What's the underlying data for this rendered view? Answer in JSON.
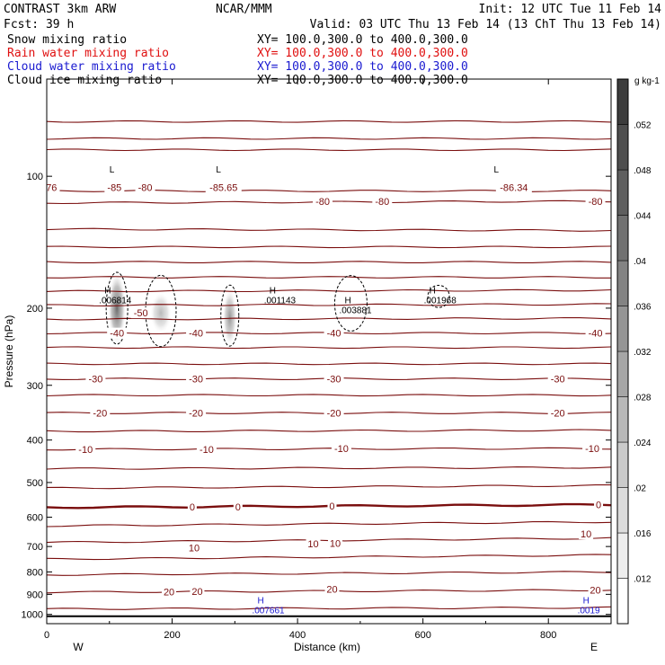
{
  "header": {
    "line1_left": "CONTRAST  3km ARW",
    "line1_center": "NCAR/MMM",
    "line1_right": "Init: 12 UTC Tue 11 Feb 14",
    "line2_left": "Fcst:   39 h",
    "line2_right": "Valid: 03 UTC Thu 13 Feb 14 (13 ChT Thu 13 Feb 14)",
    "fields": [
      {
        "name": "Snow mixing ratio",
        "xy": "XY= 100.0,300.0 to 400.0,300.0",
        "color": "#000000"
      },
      {
        "name": "Rain water mixing ratio",
        "xy": "XY= 100.0,300.0 to 400.0,300.0",
        "color": "#e01010"
      },
      {
        "name": "Cloud water mixing ratio",
        "xy": "XY= 100.0,300.0 to 400.0,300.0",
        "color": "#1a1ad0"
      },
      {
        "name": "Cloud ice mixing ratio",
        "xy": "XY= 100.0,300.0 to 400.0,300.0",
        "color": "#000000"
      }
    ]
  },
  "colors": {
    "contour": "#7a0e0e",
    "contour_zero": "#7a0e0e",
    "cloud_ice": "#000000",
    "cloud_water": "#1a1ad0"
  },
  "chart_data": {
    "type": "cross-section",
    "xlabel": "Distance (km)",
    "ylabel": "Pressure (hPa)",
    "xlim": [
      0,
      900
    ],
    "ylim": [
      1050,
      60
    ],
    "y_scale": "log",
    "x_ticks": [
      0,
      200,
      400,
      600,
      800
    ],
    "x_tick_labels": [
      "0",
      "200",
      "400",
      "600",
      "800"
    ],
    "y_ticks": [
      100,
      200,
      300,
      400,
      500,
      600,
      700,
      800,
      900,
      1000
    ],
    "y_tick_labels": [
      "100",
      "200",
      "300",
      "400",
      "500",
      "600",
      "700",
      "800",
      "900",
      "1000"
    ],
    "x_end_labels": {
      "left": "W",
      "right": "E"
    },
    "ground_pressure": 1010,
    "temperature_contours": [
      {
        "p_left": 75,
        "p_right": 75,
        "label": ""
      },
      {
        "p_left": 82,
        "p_right": 82,
        "label": ""
      },
      {
        "p_left": 87,
        "p_right": 87,
        "label": ""
      },
      {
        "p_left": 108,
        "p_right": 108,
        "label": ""
      },
      {
        "p_left": 115,
        "p_right": 114,
        "label": "-80"
      },
      {
        "p_left": 132,
        "p_right": 133,
        "label": ""
      },
      {
        "p_left": 145,
        "p_right": 145,
        "label": ""
      },
      {
        "p_left": 157,
        "p_right": 157,
        "label": ""
      },
      {
        "p_left": 170,
        "p_right": 170,
        "label": ""
      },
      {
        "p_left": 183,
        "p_right": 182,
        "label": ""
      },
      {
        "p_left": 197,
        "p_right": 196,
        "label": ""
      },
      {
        "p_left": 212,
        "p_right": 211,
        "label": ""
      },
      {
        "p_left": 228,
        "p_right": 228,
        "label": "-40"
      },
      {
        "p_left": 246,
        "p_right": 246,
        "label": ""
      },
      {
        "p_left": 268,
        "p_right": 268,
        "label": ""
      },
      {
        "p_left": 290,
        "p_right": 290,
        "label": "-30"
      },
      {
        "p_left": 316,
        "p_right": 316,
        "label": ""
      },
      {
        "p_left": 347,
        "p_right": 347,
        "label": "-20"
      },
      {
        "p_left": 382,
        "p_right": 380,
        "label": ""
      },
      {
        "p_left": 420,
        "p_right": 418,
        "label": "-10"
      },
      {
        "p_left": 465,
        "p_right": 462,
        "label": ""
      },
      {
        "p_left": 515,
        "p_right": 508,
        "label": ""
      },
      {
        "p_left": 570,
        "p_right": 562,
        "label": "0",
        "bold": true
      },
      {
        "p_left": 628,
        "p_right": 615,
        "label": ""
      },
      {
        "p_left": 685,
        "p_right": 670,
        "label": "10"
      },
      {
        "p_left": 748,
        "p_right": 732,
        "label": ""
      },
      {
        "p_left": 812,
        "p_right": 800,
        "label": ""
      },
      {
        "p_left": 890,
        "p_right": 880,
        "label": "20"
      },
      {
        "p_left": 972,
        "p_right": 965,
        "label": ""
      }
    ],
    "contour_labels": [
      {
        "x": 108,
        "p": 106,
        "text": "-85"
      },
      {
        "x": 157,
        "p": 106,
        "text": "-80"
      },
      {
        "x": 282,
        "p": 106,
        "text": "-85.65"
      },
      {
        "x": 440,
        "p": 114,
        "text": "-80"
      },
      {
        "x": 535,
        "p": 114,
        "text": "-80"
      },
      {
        "x": 745,
        "p": 106,
        "text": "-86.34"
      },
      {
        "x": 875,
        "p": 114,
        "text": "-80"
      },
      {
        "x": 5,
        "p": 106,
        "text": "-76"
      },
      {
        "x": 150,
        "p": 205,
        "text": "-50"
      },
      {
        "x": 112,
        "p": 228,
        "text": "-40"
      },
      {
        "x": 238,
        "p": 228,
        "text": "-40"
      },
      {
        "x": 458,
        "p": 228,
        "text": "-40"
      },
      {
        "x": 875,
        "p": 228,
        "text": "-40"
      },
      {
        "x": 78,
        "p": 290,
        "text": "-30"
      },
      {
        "x": 238,
        "p": 290,
        "text": "-30"
      },
      {
        "x": 458,
        "p": 290,
        "text": "-30"
      },
      {
        "x": 815,
        "p": 290,
        "text": "-30"
      },
      {
        "x": 85,
        "p": 347,
        "text": "-20"
      },
      {
        "x": 238,
        "p": 347,
        "text": "-20"
      },
      {
        "x": 458,
        "p": 347,
        "text": "-20"
      },
      {
        "x": 815,
        "p": 347,
        "text": "-20"
      },
      {
        "x": 62,
        "p": 420,
        "text": "-10"
      },
      {
        "x": 255,
        "p": 420,
        "text": "-10"
      },
      {
        "x": 470,
        "p": 418,
        "text": "-10"
      },
      {
        "x": 870,
        "p": 418,
        "text": "-10"
      },
      {
        "x": 232,
        "p": 568,
        "text": "0"
      },
      {
        "x": 305,
        "p": 568,
        "text": "0"
      },
      {
        "x": 455,
        "p": 565,
        "text": "0"
      },
      {
        "x": 880,
        "p": 562,
        "text": "0"
      },
      {
        "x": 235,
        "p": 705,
        "text": "10"
      },
      {
        "x": 425,
        "p": 690,
        "text": "10"
      },
      {
        "x": 460,
        "p": 688,
        "text": "10"
      },
      {
        "x": 860,
        "p": 655,
        "text": "10"
      },
      {
        "x": 195,
        "p": 888,
        "text": "20"
      },
      {
        "x": 240,
        "p": 885,
        "text": "20"
      },
      {
        "x": 455,
        "p": 875,
        "text": "20"
      },
      {
        "x": 875,
        "p": 880,
        "text": "20"
      }
    ],
    "extrema": [
      {
        "type": "L",
        "x": 100,
        "p": 98,
        "value": ""
      },
      {
        "type": "L",
        "x": 270,
        "p": 98,
        "value": ""
      },
      {
        "type": "L",
        "x": 713,
        "p": 98,
        "value": ""
      },
      {
        "type": "H",
        "x": 92,
        "p": 185,
        "value": ".006814"
      },
      {
        "type": "H",
        "x": 355,
        "p": 185,
        "value": ".001143"
      },
      {
        "type": "H",
        "x": 475,
        "p": 195,
        "value": ".003881"
      },
      {
        "type": "H",
        "x": 610,
        "p": 185,
        "value": ".001968"
      },
      {
        "type": "H",
        "x": 336,
        "p": 945,
        "value": ".007661",
        "color": "blue"
      },
      {
        "type": "H",
        "x": 855,
        "p": 945,
        "value": ".0019",
        "color": "blue"
      }
    ],
    "snow_shading": [
      {
        "x": 112,
        "p": 200,
        "wx": 10,
        "hp": [
          170,
          250
        ],
        "intensity": 0.85
      },
      {
        "x": 182,
        "p": 205,
        "wx": 12,
        "hp": [
          185,
          230
        ],
        "intensity": 0.4
      },
      {
        "x": 292,
        "p": 210,
        "wx": 8,
        "hp": [
          185,
          250
        ],
        "intensity": 0.6
      }
    ],
    "colorbar": {
      "unit": "g kg-1",
      "ticks": [
        0.012,
        0.016,
        0.02,
        0.024,
        0.028,
        0.032,
        0.036,
        0.04,
        0.044,
        0.048,
        0.052
      ],
      "tick_labels": [
        ".012",
        ".016",
        ".02",
        ".024",
        ".028",
        ".032",
        ".036",
        ".04",
        ".044",
        ".048",
        ".052"
      ],
      "range": [
        0.008,
        0.056
      ]
    }
  }
}
